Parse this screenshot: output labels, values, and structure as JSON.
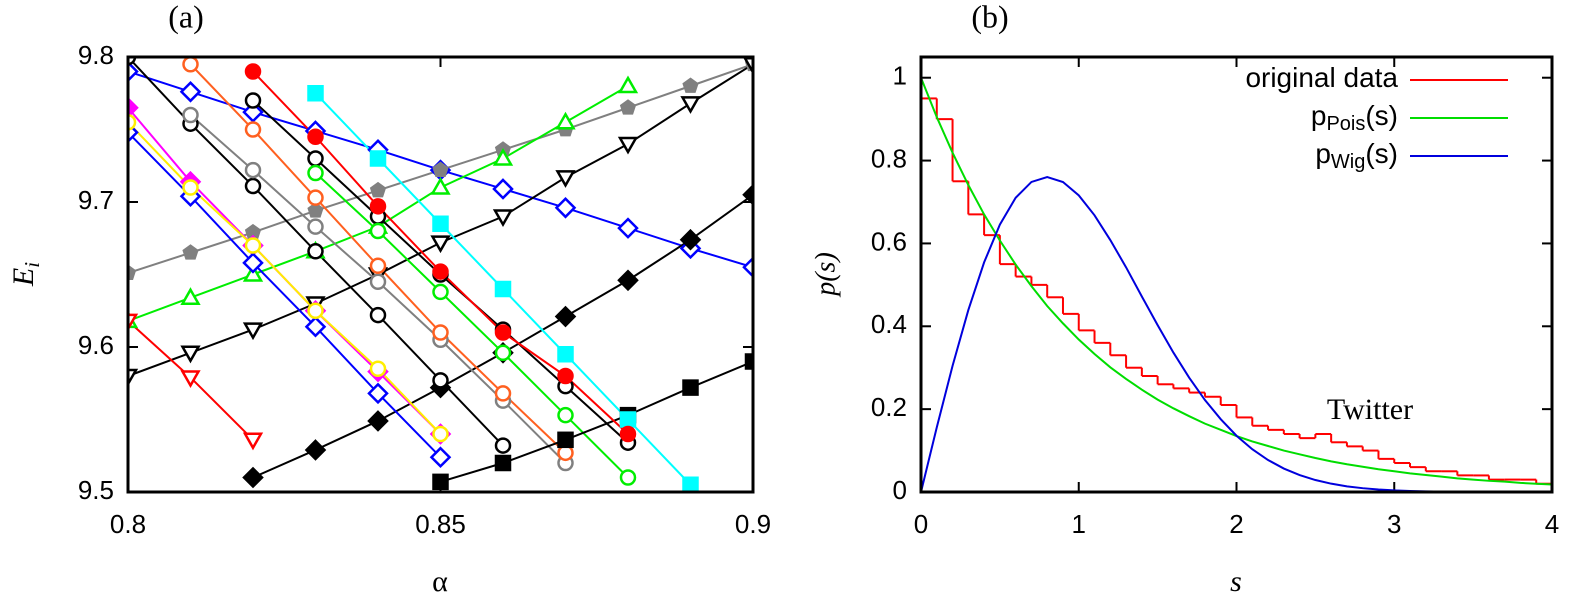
{
  "chart_data": [
    {
      "type": "line",
      "panel_label": "(a)",
      "xlabel": "α",
      "ylabel": [
        "E",
        "i"
      ],
      "x": [
        0.8,
        0.81,
        0.82,
        0.83,
        0.84,
        0.85,
        0.86,
        0.87,
        0.88,
        0.89,
        0.9
      ],
      "xlim": [
        0.8,
        0.9
      ],
      "xticks": [
        0.8,
        0.85,
        0.9
      ],
      "ylim": [
        9.5,
        9.8
      ],
      "yticks": [
        9.5,
        9.6,
        9.7,
        9.8
      ],
      "series": [
        {
          "color": "#0000ff",
          "marker": "diamond",
          "filled": false,
          "values": [
            9.79,
            9.776,
            9.762,
            9.749,
            9.736,
            9.722,
            9.709,
            9.696,
            9.682,
            9.668,
            9.655
          ]
        },
        {
          "color": "#000000",
          "marker": "diamond",
          "filled": true,
          "values": [
            null,
            null,
            9.51,
            9.529,
            9.549,
            9.572,
            9.596,
            9.621,
            9.646,
            9.674,
            9.705
          ]
        },
        {
          "color": "#808080",
          "marker": "pentagon",
          "filled": true,
          "values": [
            9.651,
            9.665,
            9.679,
            9.694,
            9.708,
            9.722,
            9.736,
            9.75,
            9.765,
            9.78,
            9.795
          ]
        },
        {
          "color": "#00ee00",
          "marker": "triangle",
          "filled": false,
          "values": [
            9.618,
            9.634,
            9.65,
            9.666,
            9.683,
            9.71,
            9.73,
            9.755,
            9.78,
            null,
            null
          ]
        },
        {
          "color": "#000000",
          "marker": "invtriangle",
          "filled": false,
          "values": [
            9.58,
            9.596,
            9.612,
            9.63,
            9.65,
            9.672,
            9.69,
            9.717,
            9.74,
            9.768,
            9.795
          ]
        },
        {
          "color": "#ff0000",
          "marker": "invtriangle",
          "filled": false,
          "values": [
            9.618,
            9.579,
            9.536,
            null,
            null,
            null,
            null,
            null,
            null,
            null,
            null
          ]
        },
        {
          "color": "#000000",
          "marker": "circle",
          "filled": false,
          "values": [
            9.8,
            9.754,
            9.711,
            9.666,
            9.622,
            9.577,
            9.532,
            null,
            null,
            null,
            null
          ]
        },
        {
          "color": "#000000",
          "marker": "circle",
          "filled": false,
          "values": [
            null,
            null,
            9.77,
            9.73,
            9.69,
            9.65,
            9.612,
            9.573,
            9.534,
            null,
            null
          ]
        },
        {
          "color": "#ff00ff",
          "marker": "diamond",
          "filled": true,
          "values": [
            9.765,
            9.714,
            9.67,
            9.625,
            9.583,
            9.54,
            null,
            null,
            null,
            null,
            null
          ]
        },
        {
          "color": "#0000ff",
          "marker": "diamond",
          "filled": false,
          "values": [
            9.748,
            9.704,
            9.658,
            9.614,
            9.568,
            9.524,
            null,
            null,
            null,
            null,
            null
          ]
        },
        {
          "color": "#808080",
          "marker": "circle",
          "filled": false,
          "values": [
            null,
            9.76,
            9.722,
            9.683,
            9.645,
            9.605,
            9.563,
            9.52,
            null,
            null,
            null
          ]
        },
        {
          "color": "#ff6020",
          "marker": "circle",
          "filled": false,
          "values": [
            null,
            9.795,
            9.75,
            9.703,
            9.656,
            9.61,
            9.568,
            9.527,
            null,
            null,
            null
          ]
        },
        {
          "color": "#00ee00",
          "marker": "circle",
          "filled": false,
          "values": [
            null,
            null,
            null,
            9.72,
            9.68,
            9.638,
            9.596,
            9.553,
            9.51,
            null,
            null
          ]
        },
        {
          "color": "#000000",
          "marker": "square",
          "filled": true,
          "values": [
            null,
            null,
            null,
            null,
            null,
            9.507,
            9.52,
            9.536,
            9.553,
            9.572,
            9.59
          ]
        },
        {
          "color": "#00ffff",
          "marker": "square",
          "filled": true,
          "values": [
            null,
            null,
            null,
            9.775,
            9.73,
            9.685,
            9.64,
            9.595,
            9.55,
            9.505,
            null
          ]
        },
        {
          "color": "#ff0000",
          "marker": "circle",
          "filled": true,
          "values": [
            null,
            null,
            9.79,
            9.745,
            9.697,
            9.652,
            9.61,
            9.58,
            9.54,
            null,
            null
          ]
        },
        {
          "color": "#ffee00",
          "marker": "circle",
          "filled": false,
          "values": [
            9.755,
            9.71,
            9.67,
            9.625,
            9.585,
            9.54,
            null,
            null,
            null,
            null,
            null
          ]
        }
      ]
    },
    {
      "type": "line",
      "panel_label": "(b)",
      "xlabel": "s",
      "ylabel": "p(s)",
      "annotation": "Twitter",
      "xlim": [
        0,
        4
      ],
      "xticks": [
        0,
        1,
        2,
        3,
        4
      ],
      "ylim": [
        0,
        1.05
      ],
      "yticks": [
        0,
        0.2,
        0.4,
        0.6,
        0.8,
        1
      ],
      "histogram": {
        "name": [
          "original data"
        ],
        "color": "#ff0000",
        "bins": [
          0,
          0.1,
          0.2,
          0.3,
          0.4,
          0.5,
          0.6,
          0.7,
          0.8,
          0.9,
          1.0,
          1.1,
          1.2,
          1.3,
          1.4,
          1.5,
          1.6,
          1.7,
          1.8,
          1.9,
          2.0,
          2.1,
          2.2,
          2.3,
          2.4,
          2.5,
          2.6,
          2.7,
          2.8,
          2.9,
          3.0,
          3.1,
          3.2,
          3.3,
          3.4,
          3.5,
          3.6,
          3.7,
          3.8,
          3.9,
          4.0
        ],
        "values": [
          0.95,
          0.9,
          0.75,
          0.67,
          0.62,
          0.55,
          0.52,
          0.5,
          0.47,
          0.43,
          0.39,
          0.36,
          0.33,
          0.3,
          0.28,
          0.26,
          0.25,
          0.24,
          0.23,
          0.21,
          0.18,
          0.16,
          0.15,
          0.14,
          0.13,
          0.14,
          0.12,
          0.11,
          0.1,
          0.08,
          0.07,
          0.06,
          0.05,
          0.05,
          0.04,
          0.04,
          0.03,
          0.03,
          0.03,
          0.02
        ]
      },
      "x": [
        0,
        0.1,
        0.2,
        0.3,
        0.4,
        0.5,
        0.6,
        0.7,
        0.8,
        0.9,
        1.0,
        1.1,
        1.2,
        1.3,
        1.4,
        1.5,
        1.6,
        1.7,
        1.8,
        1.9,
        2.0,
        2.1,
        2.2,
        2.3,
        2.4,
        2.5,
        2.6,
        2.7,
        2.8,
        2.9,
        3.0,
        3.1,
        3.2,
        3.3,
        3.4,
        3.5,
        3.6,
        3.7,
        3.8,
        3.9,
        4.0
      ],
      "series": [
        {
          "name": [
            "p",
            "Pois",
            "(s)"
          ],
          "color": "#00dd00",
          "values": [
            1,
            0.905,
            0.819,
            0.741,
            0.67,
            0.607,
            0.549,
            0.497,
            0.449,
            0.407,
            0.368,
            0.333,
            0.301,
            0.273,
            0.247,
            0.223,
            0.202,
            0.183,
            0.165,
            0.15,
            0.135,
            0.122,
            0.111,
            0.1,
            0.091,
            0.082,
            0.074,
            0.067,
            0.061,
            0.055,
            0.05,
            0.045,
            0.041,
            0.037,
            0.033,
            0.03,
            0.027,
            0.025,
            0.022,
            0.02,
            0.018
          ]
        },
        {
          "name": [
            "p",
            "Wig",
            "(s)"
          ],
          "color": "#0000dd",
          "values": [
            0,
            0.1559,
            0.3044,
            0.4391,
            0.5542,
            0.6454,
            0.7103,
            0.7484,
            0.7601,
            0.7483,
            0.7161,
            0.6679,
            0.6082,
            0.5423,
            0.4719,
            0.4029,
            0.3365,
            0.276,
            0.2219,
            0.1758,
            0.1358,
            0.1033,
            0.0772,
            0.0566,
            0.0409,
            0.0289,
            0.0201,
            0.0137,
            0.0092,
            0.006,
            0.0038,
            0.0024,
            0.0015,
            0.0009,
            0.0005,
            0.0003,
            0.0002,
            0.0001,
            0.0001,
            0,
            0
          ]
        }
      ]
    }
  ]
}
